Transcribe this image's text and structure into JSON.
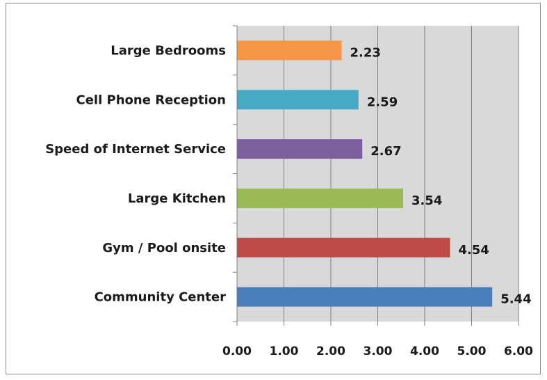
{
  "chart_data": {
    "type": "bar",
    "orientation": "horizontal",
    "categories": [
      "Community Center",
      "Gym / Pool onsite",
      "Large Kitchen",
      "Speed of Internet Service",
      "Cell Phone Reception",
      "Large Bedrooms"
    ],
    "values": [
      5.44,
      4.54,
      3.54,
      2.67,
      2.59,
      2.23
    ],
    "value_labels": [
      "5.44",
      "4.54",
      "3.54",
      "2.67",
      "2.59",
      "2.23"
    ],
    "colors": [
      "#4a7ebb",
      "#be4b48",
      "#98b954",
      "#7d5fa0",
      "#46aac5",
      "#f79646"
    ],
    "xlim": [
      0,
      6
    ],
    "xticks": [
      "0.00",
      "1.00",
      "2.00",
      "3.00",
      "4.00",
      "5.00",
      "6.00"
    ],
    "title": "",
    "xlabel": "",
    "ylabel": "",
    "grid": "vertical",
    "plot_background": "#d9d9d9",
    "legend": "none"
  }
}
